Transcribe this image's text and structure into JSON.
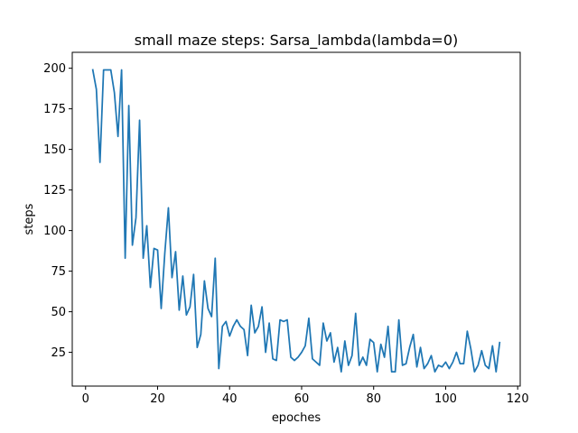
{
  "chart_data": {
    "type": "line",
    "title": "small maze steps: Sarsa_lambda(lambda=0)",
    "xlabel": "epoches",
    "ylabel": "steps",
    "xlim": [
      -3.7,
      120.7
    ],
    "ylim": [
      4.2,
      209.8
    ],
    "xticks": [
      0,
      20,
      40,
      60,
      80,
      100,
      120
    ],
    "yticks": [
      25,
      50,
      75,
      100,
      125,
      150,
      175,
      200
    ],
    "grid": false,
    "series": [
      {
        "color": "#1f77b4",
        "x": [
          2,
          3,
          4,
          5,
          6,
          7,
          8,
          9,
          10,
          11,
          12,
          13,
          14,
          15,
          16,
          17,
          18,
          19,
          20,
          21,
          22,
          23,
          24,
          25,
          26,
          27,
          28,
          29,
          30,
          31,
          32,
          33,
          34,
          35,
          36,
          37,
          38,
          39,
          40,
          41,
          42,
          43,
          44,
          45,
          46,
          47,
          48,
          49,
          50,
          51,
          52,
          53,
          54,
          55,
          56,
          57,
          58,
          59,
          60,
          61,
          62,
          63,
          64,
          65,
          66,
          67,
          68,
          69,
          70,
          71,
          72,
          73,
          74,
          75,
          76,
          77,
          78,
          79,
          80,
          81,
          82,
          83,
          84,
          85,
          86,
          87,
          88,
          89,
          90,
          91,
          92,
          93,
          94,
          95,
          96,
          97,
          98,
          99,
          100,
          101,
          102,
          103,
          104,
          105,
          106,
          107,
          108,
          109,
          110,
          111,
          112,
          113,
          114,
          115
        ],
        "values": [
          199,
          187,
          142,
          199,
          199,
          199,
          185,
          158,
          199,
          83,
          177,
          91,
          108,
          168,
          83,
          103,
          65,
          89,
          88,
          52,
          86,
          114,
          71,
          87,
          51,
          72,
          48,
          53,
          73,
          28,
          36,
          69,
          52,
          47,
          83,
          15,
          41,
          44,
          35,
          41,
          45,
          41,
          39,
          23,
          54,
          37,
          41,
          53,
          25,
          43,
          21,
          20,
          45,
          44,
          45,
          22,
          20,
          22,
          25,
          29,
          46,
          21,
          19,
          17,
          43,
          32,
          37,
          19,
          28,
          13,
          32,
          17,
          23,
          49,
          17,
          22,
          17,
          33,
          31,
          13,
          30,
          22,
          41,
          13,
          13,
          45,
          17,
          18,
          28,
          36,
          16,
          28,
          15,
          18,
          23,
          13,
          17,
          16,
          19,
          15,
          19,
          25,
          18,
          18,
          38,
          27,
          13,
          17,
          26,
          17,
          15,
          29,
          13,
          31
        ]
      }
    ]
  }
}
